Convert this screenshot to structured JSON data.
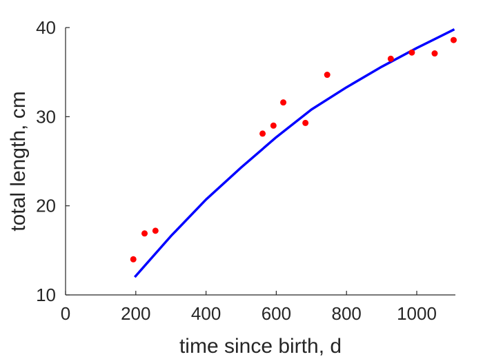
{
  "chart_data": {
    "type": "scatter",
    "xlabel": "time since birth, d",
    "ylabel": "total length, cm",
    "xlim": [
      0,
      1110
    ],
    "ylim": [
      10,
      40
    ],
    "xticks": [
      0,
      200,
      400,
      600,
      800,
      1000
    ],
    "yticks": [
      10,
      20,
      30,
      40
    ],
    "grid": false,
    "series": [
      {
        "kind": "scatter",
        "color": "#ff0000",
        "points": [
          {
            "x": 193,
            "y": 14.0
          },
          {
            "x": 225,
            "y": 16.9
          },
          {
            "x": 256,
            "y": 17.2
          },
          {
            "x": 561,
            "y": 28.1
          },
          {
            "x": 592,
            "y": 29.0
          },
          {
            "x": 620,
            "y": 31.6
          },
          {
            "x": 683,
            "y": 29.3
          },
          {
            "x": 745,
            "y": 34.7
          },
          {
            "x": 926,
            "y": 36.5
          },
          {
            "x": 986,
            "y": 37.2
          },
          {
            "x": 1051,
            "y": 37.1
          },
          {
            "x": 1105,
            "y": 38.6
          }
        ]
      },
      {
        "kind": "line",
        "color": "#0000ff",
        "points": [
          {
            "x": 197,
            "y": 12.0
          },
          {
            "x": 300,
            "y": 16.6
          },
          {
            "x": 400,
            "y": 20.7
          },
          {
            "x": 500,
            "y": 24.3
          },
          {
            "x": 600,
            "y": 27.7
          },
          {
            "x": 700,
            "y": 30.8
          },
          {
            "x": 800,
            "y": 33.3
          },
          {
            "x": 900,
            "y": 35.6
          },
          {
            "x": 1000,
            "y": 37.7
          },
          {
            "x": 1107,
            "y": 39.8
          }
        ]
      }
    ]
  }
}
